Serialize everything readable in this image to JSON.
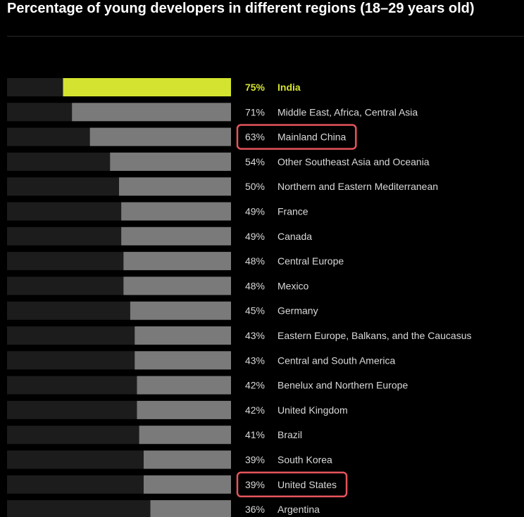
{
  "title": "Percentage of young developers in different regions (18–29 years old)",
  "colors": {
    "background": "#000000",
    "track": "#1c1c1c",
    "bar": "#7a7a7a",
    "highlight_bar": "#d4e32f",
    "highlight_text": "#d4e32f",
    "text": "#d9d9d9",
    "annotation_box": "#e5545a"
  },
  "chart_data": {
    "type": "bar",
    "orientation": "horizontal",
    "title": "Percentage of young developers in different regions (18–29 years old)",
    "xlabel": "",
    "ylabel": "",
    "xlim": [
      0,
      100
    ],
    "grid": false,
    "legend": "none",
    "categories": [
      "India",
      "Middle East, Africa, Central Asia",
      "Mainland China",
      "Other Southeast Asia and Oceania",
      "Northern and Eastern Mediterranean",
      "France",
      "Canada",
      "Central Europe",
      "Mexico",
      "Germany",
      "Eastern Europe, Balkans, and the Caucasus",
      "Central and South America",
      "Benelux and Northern Europe",
      "United Kingdom",
      "Brazil",
      "South Korea",
      "United States",
      "Argentina"
    ],
    "values": [
      75,
      71,
      63,
      54,
      50,
      49,
      49,
      48,
      48,
      45,
      43,
      43,
      42,
      42,
      41,
      39,
      39,
      36
    ],
    "value_labels": [
      "75%",
      "71%",
      "63%",
      "54%",
      "50%",
      "49%",
      "49%",
      "48%",
      "48%",
      "45%",
      "43%",
      "43%",
      "42%",
      "42%",
      "41%",
      "39%",
      "39%",
      "36%"
    ],
    "highlighted": [
      "India"
    ],
    "annotated": [
      "Mainland China",
      "United States"
    ]
  }
}
